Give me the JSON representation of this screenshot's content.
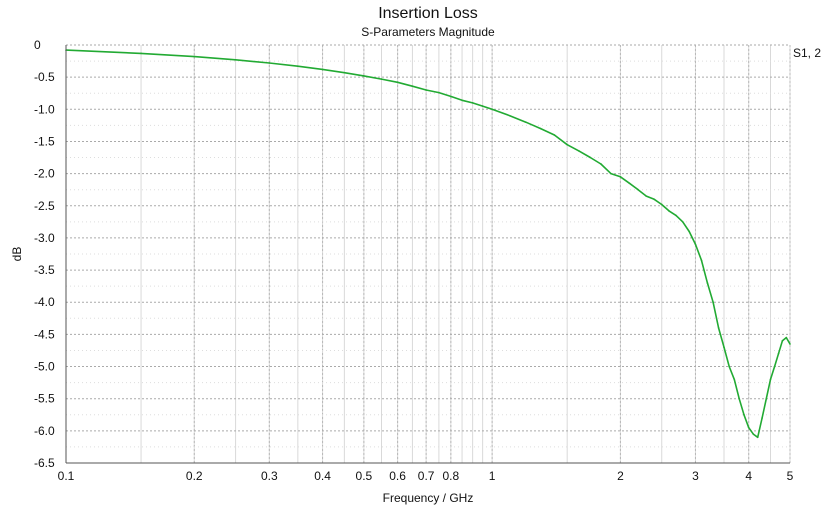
{
  "chart_data": {
    "type": "line",
    "title": "Insertion Loss",
    "subtitle": "S-Parameters Magnitude",
    "xlabel": "Frequency / GHz",
    "ylabel": "dB",
    "xscale": "log",
    "xlim": [
      0.1,
      5
    ],
    "ylim": [
      -6.5,
      0
    ],
    "x_ticks": [
      0.1,
      0.2,
      0.3,
      0.4,
      0.5,
      0.6,
      0.7,
      0.8,
      1,
      2,
      3,
      4,
      5
    ],
    "x_tick_labels": [
      "0.1",
      "0.2",
      "0.3",
      "0.4",
      "0.5",
      "0.6",
      "0.7",
      "0.8",
      "1",
      "2",
      "3",
      "4",
      "5"
    ],
    "y_ticks": [
      0,
      -0.5,
      -1.0,
      -1.5,
      -2.0,
      -2.5,
      -3.0,
      -3.5,
      -4.0,
      -4.5,
      -5.0,
      -5.5,
      -6.0,
      -6.5
    ],
    "y_tick_labels": [
      "0",
      "-0.5",
      "-1.0",
      "-1.5",
      "-2.0",
      "-2.5",
      "-3.0",
      "-3.5",
      "-4.0",
      "-4.5",
      "-5.0",
      "-5.5",
      "-6.0",
      "-6.5"
    ],
    "grid": true,
    "series_color": "#22aa33",
    "series": [
      {
        "name": "S1, 2",
        "x": [
          0.1,
          0.15,
          0.2,
          0.25,
          0.3,
          0.35,
          0.4,
          0.45,
          0.5,
          0.55,
          0.6,
          0.65,
          0.7,
          0.75,
          0.8,
          0.85,
          0.9,
          0.95,
          1.0,
          1.1,
          1.2,
          1.3,
          1.4,
          1.5,
          1.6,
          1.7,
          1.8,
          1.9,
          2.0,
          2.1,
          2.2,
          2.3,
          2.4,
          2.5,
          2.6,
          2.7,
          2.8,
          2.9,
          3.0,
          3.1,
          3.2,
          3.3,
          3.4,
          3.5,
          3.6,
          3.7,
          3.8,
          3.9,
          4.0,
          4.1,
          4.2,
          4.3,
          4.4,
          4.5,
          4.6,
          4.7,
          4.8,
          4.9,
          5.0
        ],
        "y": [
          -0.08,
          -0.13,
          -0.18,
          -0.23,
          -0.28,
          -0.33,
          -0.38,
          -0.43,
          -0.48,
          -0.53,
          -0.58,
          -0.64,
          -0.7,
          -0.74,
          -0.8,
          -0.86,
          -0.9,
          -0.95,
          -1.0,
          -1.1,
          -1.2,
          -1.3,
          -1.4,
          -1.55,
          -1.65,
          -1.75,
          -1.85,
          -2.0,
          -2.05,
          -2.15,
          -2.25,
          -2.35,
          -2.4,
          -2.48,
          -2.58,
          -2.65,
          -2.75,
          -2.9,
          -3.1,
          -3.35,
          -3.7,
          -4.0,
          -4.4,
          -4.7,
          -5.0,
          -5.2,
          -5.5,
          -5.75,
          -5.95,
          -6.05,
          -6.1,
          -5.8,
          -5.5,
          -5.2,
          -5.0,
          -4.8,
          -4.6,
          -4.55,
          -4.65
        ],
        "values_note": ""
      }
    ],
    "legend": "right",
    "legend_label": "S1, 2"
  }
}
